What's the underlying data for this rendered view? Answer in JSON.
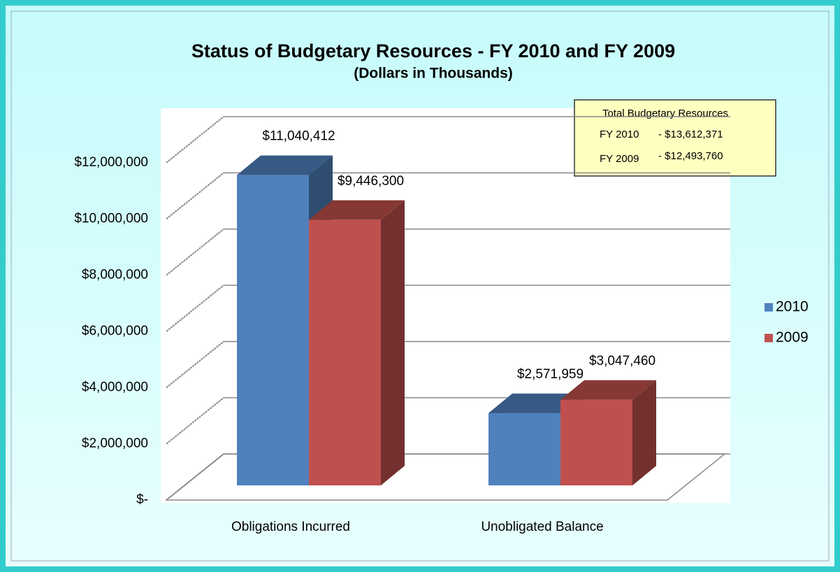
{
  "chart_data": {
    "type": "bar3d",
    "title": "Status of Budgetary Resources - FY 2010 and FY 2009",
    "subtitle": "(Dollars in Thousands)",
    "categories": [
      "Obligations Incurred",
      "Unobligated Balance"
    ],
    "series": [
      {
        "name": "2010",
        "color": "#4f81bd",
        "values": [
          11040412,
          2571959
        ],
        "value_labels": [
          "$11,040,412",
          "$2,571,959"
        ]
      },
      {
        "name": "2009",
        "color": "#c0504d",
        "values": [
          9446300,
          3047460
        ],
        "value_labels": [
          "$9,446,300",
          "$3,047,460"
        ]
      }
    ],
    "ylim": [
      0,
      12000000
    ],
    "yticks": [
      {
        "value": 0,
        "label": "$-"
      },
      {
        "value": 2000000,
        "label": "$2,000,000"
      },
      {
        "value": 4000000,
        "label": "$4,000,000"
      },
      {
        "value": 6000000,
        "label": "$6,000,000"
      },
      {
        "value": 8000000,
        "label": "$8,000,000"
      },
      {
        "value": 10000000,
        "label": "$10,000,000"
      },
      {
        "value": 12000000,
        "label": "$12,000,000"
      }
    ],
    "grid": true,
    "legend": "right",
    "annotation": {
      "title": "Total Budgetary Resources",
      "lines": [
        {
          "label": "FY 2010",
          "value": "- $13,612,371"
        },
        {
          "label": "FY 2009",
          "value": "- $12,493,760"
        }
      ]
    }
  }
}
